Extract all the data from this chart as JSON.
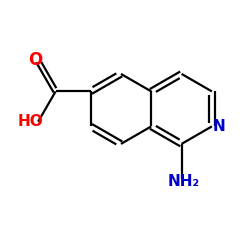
{
  "background": "#ffffff",
  "bond_color": "#000000",
  "bond_width": 1.6,
  "atom_N_color": "#0000cc",
  "atom_O_color": "#ff0000",
  "font_size_atom": 11,
  "xlim": [
    0,
    10
  ],
  "ylim": [
    0,
    10
  ]
}
